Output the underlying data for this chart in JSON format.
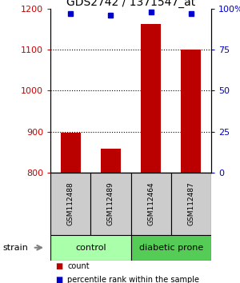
{
  "title": "GDS2742 / 1371547_at",
  "samples": [
    "GSM112488",
    "GSM112489",
    "GSM112464",
    "GSM112487"
  ],
  "counts": [
    898,
    858,
    1163,
    1100
  ],
  "percentiles": [
    97,
    96,
    98,
    97
  ],
  "ylim_left": [
    800,
    1200
  ],
  "ylim_right": [
    0,
    100
  ],
  "yticks_left": [
    800,
    900,
    1000,
    1100,
    1200
  ],
  "yticks_right": [
    0,
    25,
    50,
    75,
    100
  ],
  "ytick_labels_right": [
    "0",
    "25",
    "50",
    "75",
    "100%"
  ],
  "bar_color": "#bb0000",
  "dot_color": "#0000cc",
  "groups": [
    {
      "label": "control",
      "indices": [
        0,
        1
      ],
      "color": "#aaffaa"
    },
    {
      "label": "diabetic prone",
      "indices": [
        2,
        3
      ],
      "color": "#55cc55"
    }
  ],
  "sample_box_color": "#cccccc",
  "title_fontsize": 10,
  "axis_color_left": "#cc0000",
  "axis_color_right": "#0000cc",
  "background_color": "#ffffff",
  "legend_items": [
    {
      "color": "#bb0000",
      "label": "count"
    },
    {
      "color": "#0000cc",
      "label": "percentile rank within the sample"
    }
  ]
}
